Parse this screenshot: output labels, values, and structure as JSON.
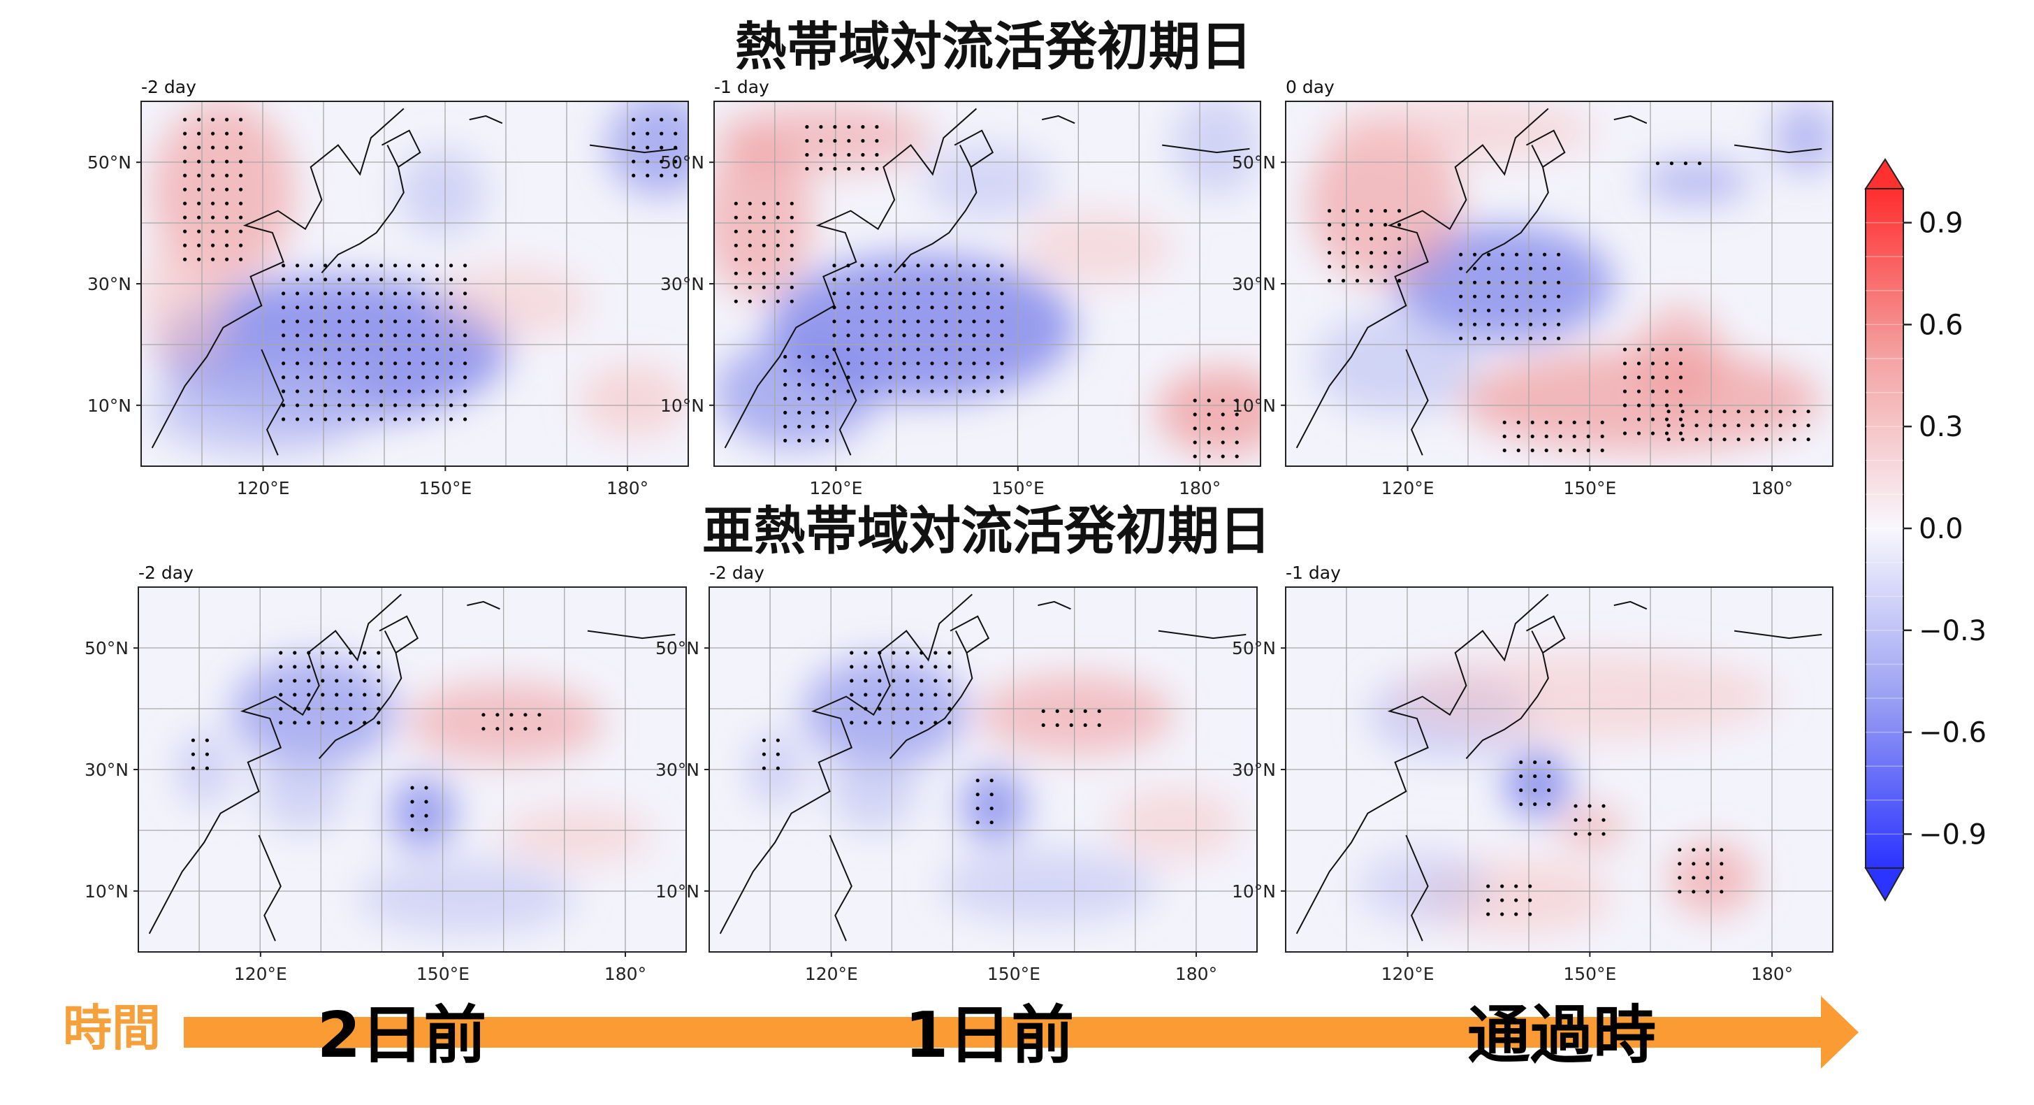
{
  "titles": {
    "top": "熱帯域対流活発初期日",
    "bottom": "亜熱帯域対流活発初期日"
  },
  "axes": {
    "lat_ticks": [
      "50°N",
      "30°N",
      "10°N"
    ],
    "lon_ticks": [
      "120°E",
      "150°E",
      "180°"
    ]
  },
  "panels": [
    {
      "label": "-2 day"
    },
    {
      "label": "-1 day"
    },
    {
      "label": "0 day"
    },
    {
      "label": "-2 day"
    },
    {
      "label": "-2 day"
    },
    {
      "label": "-1 day"
    }
  ],
  "colorbar": {
    "ticks": [
      "0.9",
      "0.6",
      "0.3",
      "0.0",
      "−0.3",
      "−0.6",
      "−0.9"
    ],
    "values": [
      0.9,
      0.6,
      0.3,
      0.0,
      -0.3,
      -0.6,
      -0.9
    ],
    "range": [
      -1.0,
      1.0
    ],
    "colors": {
      "negative": "#2a34ff",
      "positive": "#ff2a2a"
    }
  },
  "timeline": {
    "label": "時間",
    "steps": [
      "2日前",
      "1日前",
      "通過時"
    ],
    "arrow_color": "#fb9b34"
  }
}
